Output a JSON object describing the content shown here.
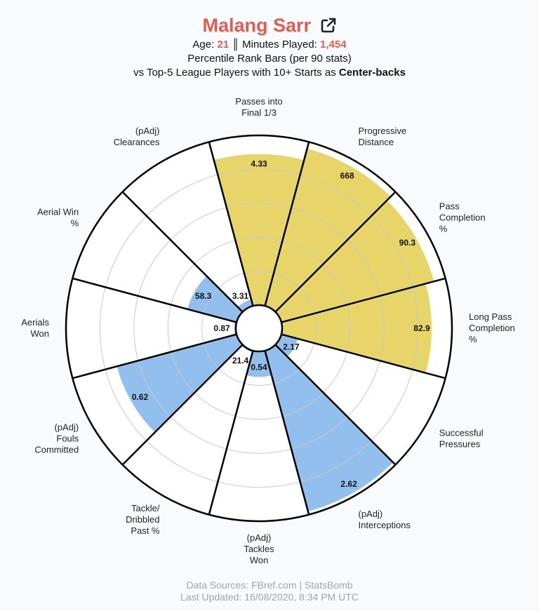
{
  "header": {
    "player_name": "Malang Sarr",
    "age_label": "Age:",
    "age_value": "21",
    "separator": "║",
    "minutes_label": "Minutes Played:",
    "minutes_value": "1,454",
    "line2": "Percentile Rank Bars (per 90 stats)",
    "line3_prefix": "vs Top-5 League Players with 10+ Starts as",
    "line3_position": "Center-backs",
    "link_icon": "external-link-icon"
  },
  "chart_data": {
    "type": "polar-bar",
    "rlim": [
      0,
      100
    ],
    "grid": true,
    "colors": {
      "passing": "#e8d56a",
      "defending": "#93bfee",
      "outline": "#000000",
      "grid": "#c8c8c8"
    },
    "categories": [
      {
        "label": [
          "Passes into",
          "Final 1/3"
        ],
        "value_label": "4.33",
        "percentile": 89,
        "group": "passing"
      },
      {
        "label": [
          "Progressive",
          "Distance"
        ],
        "value_label": "668",
        "percentile": 96,
        "group": "passing"
      },
      {
        "label": [
          "Pass",
          "Completion",
          "%"
        ],
        "value_label": "90.3",
        "percentile": 93,
        "group": "passing"
      },
      {
        "label": [
          "Long Pass",
          "Completion",
          "%"
        ],
        "value_label": "82.9",
        "percentile": 88,
        "group": "passing"
      },
      {
        "label": [
          "Successful",
          "Pressures"
        ],
        "value_label": "2.17",
        "percentile": 10,
        "group": "defending"
      },
      {
        "label": [
          "(pAdj)",
          "Interceptions"
        ],
        "value_label": "2.62",
        "percentile": 98,
        "group": "defending"
      },
      {
        "label": [
          "(pAdj)",
          "Tackles",
          "Won"
        ],
        "value_label": "0.54",
        "percentile": 15,
        "group": "defending"
      },
      {
        "label": [
          "Tackle/",
          "Dribbled",
          "Past %"
        ],
        "value_label": "21.4",
        "percentile": 1,
        "group": "defending"
      },
      {
        "label": [
          "(pAdj)",
          "Fouls",
          "Committed"
        ],
        "value_label": "0.62",
        "percentile": 73,
        "group": "defending"
      },
      {
        "label": [
          "Aerials",
          "Won"
        ],
        "value_label": "0.87",
        "percentile": 1,
        "group": "defending"
      },
      {
        "label": [
          "Aerial Win",
          "%"
        ],
        "value_label": "58.3",
        "percentile": 30,
        "group": "defending"
      },
      {
        "label": [
          "(pAdj)",
          "Clearances"
        ],
        "value_label": "3.31",
        "percentile": 4,
        "group": "defending"
      }
    ]
  },
  "footer": {
    "line1": "Data Sources: FBref.com | StatsBomb",
    "line2": "Last Updated: 16/08/2020, 8:34 PM UTC"
  }
}
